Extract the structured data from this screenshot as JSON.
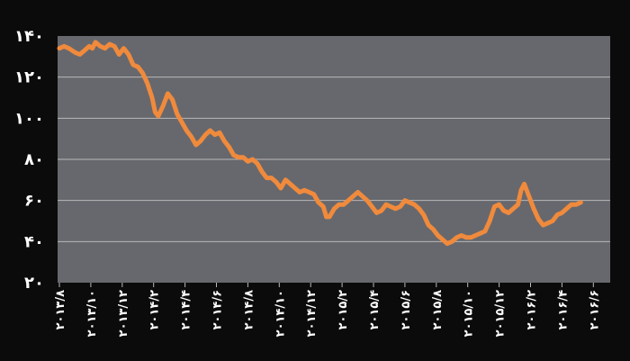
{
  "chart_data": {
    "type": "line",
    "title": "",
    "xlabel": "",
    "ylabel": "",
    "ylim": [
      20,
      140
    ],
    "y_ticks": [
      {
        "value": 20,
        "label": "۲۰"
      },
      {
        "value": 40,
        "label": "۴۰"
      },
      {
        "value": 60,
        "label": "۶۰"
      },
      {
        "value": 80,
        "label": "۸۰"
      },
      {
        "value": 100,
        "label": "۱۰۰"
      },
      {
        "value": 120,
        "label": "۱۲۰"
      },
      {
        "value": 140,
        "label": "۱۴۰"
      }
    ],
    "x_ticks": [
      "۲۰۱۳/۸",
      "۲۰۱۳/۱۰",
      "۲۰۱۳/۱۲",
      "۲۰۱۴/۲",
      "۲۰۱۴/۴",
      "۲۰۱۴/۶",
      "۲۰۱۴/۸",
      "۲۰۱۴/۱۰",
      "۲۰۱۴/۱۲",
      "۲۰۱۵/۲",
      "۲۰۱۵/۴",
      "۲۰۱۵/۶",
      "۲۰۱۵/۸",
      "۲۰۱۵/۱۰",
      "۲۰۱۵/۱۲",
      "۲۰۱۶/۲",
      "۲۰۱۶/۴",
      "۲۰۱۶/۶"
    ],
    "grid": true,
    "legend": "none",
    "series": [
      {
        "color": "#f08a3c",
        "x_unit": "months since first tick",
        "points": [
          [
            0,
            134
          ],
          [
            0.3,
            135
          ],
          [
            0.6,
            134
          ],
          [
            1.0,
            132
          ],
          [
            1.3,
            131
          ],
          [
            1.6,
            133
          ],
          [
            1.9,
            135
          ],
          [
            2.1,
            134
          ],
          [
            2.3,
            137
          ],
          [
            2.6,
            135
          ],
          [
            2.9,
            134
          ],
          [
            3.2,
            136
          ],
          [
            3.5,
            135
          ],
          [
            3.8,
            131
          ],
          [
            4.1,
            134
          ],
          [
            4.4,
            131
          ],
          [
            4.7,
            126
          ],
          [
            5.0,
            125
          ],
          [
            5.3,
            122
          ],
          [
            5.6,
            117
          ],
          [
            5.9,
            110
          ],
          [
            6.1,
            103
          ],
          [
            6.3,
            101
          ],
          [
            6.6,
            106
          ],
          [
            6.9,
            112
          ],
          [
            7.2,
            109
          ],
          [
            7.5,
            102
          ],
          [
            7.8,
            98
          ],
          [
            8.1,
            94
          ],
          [
            8.4,
            91
          ],
          [
            8.7,
            87
          ],
          [
            9.0,
            89
          ],
          [
            9.3,
            92
          ],
          [
            9.6,
            94
          ],
          [
            9.9,
            92
          ],
          [
            10.2,
            93
          ],
          [
            10.5,
            89
          ],
          [
            10.8,
            86
          ],
          [
            11.1,
            82
          ],
          [
            11.4,
            81
          ],
          [
            11.7,
            81
          ],
          [
            12.0,
            79
          ],
          [
            12.3,
            80
          ],
          [
            12.6,
            78
          ],
          [
            12.9,
            74
          ],
          [
            13.2,
            71
          ],
          [
            13.5,
            71
          ],
          [
            13.8,
            69
          ],
          [
            14.1,
            66
          ],
          [
            14.4,
            70
          ],
          [
            14.7,
            68
          ],
          [
            15.0,
            66
          ],
          [
            15.3,
            64
          ],
          [
            15.6,
            65
          ],
          [
            15.9,
            64
          ],
          [
            16.2,
            63
          ],
          [
            16.5,
            59
          ],
          [
            16.8,
            57
          ],
          [
            17.0,
            52
          ],
          [
            17.2,
            52
          ],
          [
            17.5,
            56
          ],
          [
            17.8,
            58
          ],
          [
            18.1,
            58
          ],
          [
            18.4,
            60
          ],
          [
            18.7,
            62
          ],
          [
            19.0,
            64
          ],
          [
            19.3,
            62
          ],
          [
            19.6,
            60
          ],
          [
            19.9,
            57
          ],
          [
            20.2,
            54
          ],
          [
            20.5,
            55
          ],
          [
            20.8,
            58
          ],
          [
            21.1,
            57
          ],
          [
            21.4,
            56
          ],
          [
            21.7,
            57
          ],
          [
            22.0,
            60
          ],
          [
            22.3,
            59
          ],
          [
            22.6,
            58
          ],
          [
            22.9,
            56
          ],
          [
            23.2,
            53
          ],
          [
            23.5,
            48
          ],
          [
            23.8,
            46
          ],
          [
            24.1,
            43
          ],
          [
            24.4,
            41
          ],
          [
            24.7,
            39
          ],
          [
            25.0,
            40
          ],
          [
            25.3,
            42
          ],
          [
            25.6,
            43
          ],
          [
            25.9,
            42
          ],
          [
            26.2,
            42
          ],
          [
            26.5,
            43
          ],
          [
            26.8,
            44
          ],
          [
            27.1,
            45
          ],
          [
            27.4,
            50
          ],
          [
            27.7,
            57
          ],
          [
            28.0,
            58
          ],
          [
            28.3,
            55
          ],
          [
            28.6,
            54
          ],
          [
            28.9,
            56
          ],
          [
            29.2,
            58
          ],
          [
            29.4,
            65
          ],
          [
            29.6,
            68
          ],
          [
            29.9,
            62
          ],
          [
            30.2,
            56
          ],
          [
            30.5,
            51
          ],
          [
            30.8,
            48
          ],
          [
            31.1,
            49
          ],
          [
            31.4,
            50
          ],
          [
            31.7,
            53
          ],
          [
            32.0,
            54
          ],
          [
            32.3,
            56
          ],
          [
            32.6,
            58
          ],
          [
            32.9,
            58
          ],
          [
            33.2,
            59
          ]
        ]
      }
    ]
  }
}
